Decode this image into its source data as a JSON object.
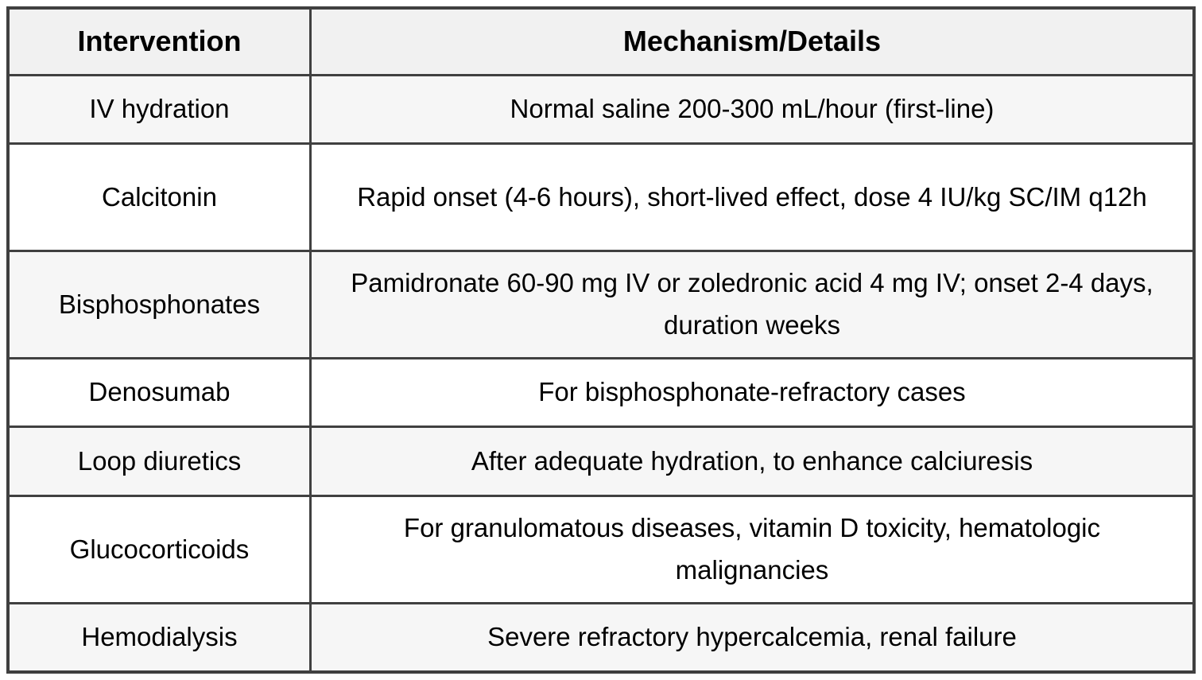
{
  "table": {
    "columns": [
      {
        "label": "Intervention"
      },
      {
        "label": "Mechanism/Details"
      }
    ],
    "rows": [
      {
        "intervention": "IV hydration",
        "details": "Normal saline 200-300 mL/hour (first-line)"
      },
      {
        "intervention": "Calcitonin",
        "details": "Rapid onset (4-6 hours), short-lived effect, dose 4 IU/kg SC/IM q12h"
      },
      {
        "intervention": "Bisphosphonates",
        "details": "Pamidronate 60-90 mg IV or zoledronic acid 4 mg IV; onset 2-4 days, duration weeks"
      },
      {
        "intervention": "Denosumab",
        "details": "For bisphosphonate-refractory cases"
      },
      {
        "intervention": "Loop diuretics",
        "details": "After adequate hydration, to enhance calciuresis"
      },
      {
        "intervention": "Glucocorticoids",
        "details": "For granulomatous diseases, vitamin D toxicity, hematologic malignancies"
      },
      {
        "intervention": "Hemodialysis",
        "details": "Severe refractory hypercalcemia, renal failure"
      }
    ],
    "colors": {
      "border": "#404040",
      "header_bg": "#f1f1f1",
      "stripe_bg": "#f6f6f6",
      "row_bg": "#ffffff",
      "text": "#000000"
    }
  }
}
